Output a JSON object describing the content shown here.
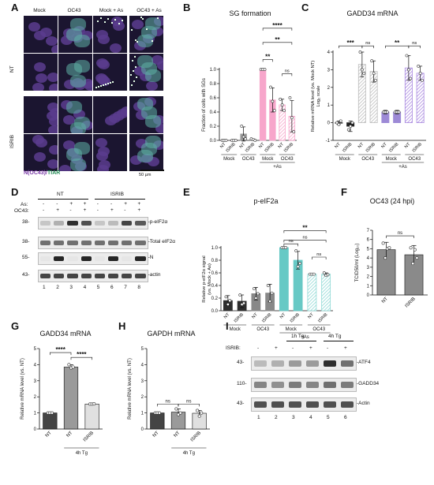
{
  "panels": {
    "A": {
      "letter": "A",
      "col_headers": [
        "Mock",
        "OC43",
        "Mock + As",
        "OC43 + As"
      ],
      "row_labels": [
        "NT",
        "ISRIB"
      ],
      "stain_label_prefix": "N(OC43)",
      "stain_label_sep": "/",
      "stain_label_suffix": "TIAR",
      "scale_bar": "50 µm"
    },
    "B": {
      "letter": "B",
      "title": "SG formation",
      "ylabel": "Fraction of cells with SGs",
      "yticks": [
        "0.0",
        "0.2",
        "0.4",
        "0.6",
        "0.8",
        "1.0"
      ],
      "sig": [
        "****",
        "**",
        "**",
        "ns"
      ],
      "group_labels": [
        "Mock",
        "OC43",
        "Mock",
        "OC43"
      ],
      "super_group": "+As",
      "bar_labels": [
        "NT",
        "ISRIB",
        "NT",
        "ISRIB",
        "NT",
        "ISRIB",
        "NT",
        "ISRIB"
      ]
    },
    "C": {
      "letter": "C",
      "title": "GADD34 mRNA",
      "ylabel_line1": "Relative mRNA level (vs. Mock NT)",
      "ylabel_line2": "Log₂ scale",
      "yticks": [
        "-1",
        "0",
        "1",
        "2",
        "3",
        "4"
      ],
      "sig": [
        "***",
        "ns",
        "**",
        "ns"
      ],
      "group_labels": [
        "Mock",
        "OC43",
        "Mock",
        "OC43"
      ],
      "super_group": "+As",
      "bar_labels": [
        "NT",
        "ISRIB",
        "NT",
        "ISRIB",
        "NT",
        "ISRIB",
        "NT",
        "ISRIB"
      ]
    },
    "D": {
      "letter": "D",
      "treat_labels": [
        "NT",
        "ISRIB"
      ],
      "row_as": "As:",
      "row_oc": "OC43:",
      "as_signs": [
        "-",
        "-",
        "+",
        "+",
        "-",
        "-",
        "+",
        "+"
      ],
      "oc_signs": [
        "-",
        "+",
        "-",
        "+",
        "-",
        "+",
        "-",
        "+"
      ],
      "mw": [
        "38-",
        "38-",
        "55-",
        "43-"
      ],
      "bands": [
        "-p-eIF2α",
        "-Total eIF2α",
        "-N",
        "-actin"
      ],
      "lanes": [
        "1",
        "2",
        "3",
        "4",
        "5",
        "6",
        "7",
        "8"
      ]
    },
    "E": {
      "letter": "E",
      "title": "p-eIF2a",
      "ylabel_line1": "Relative p-eIF2α signal",
      "ylabel_line2": "(vs. Mock + As)",
      "yticks": [
        "0.0",
        "0.2",
        "0.4",
        "0.6",
        "0.8",
        "1.0"
      ],
      "sig": [
        "**",
        "ns",
        "ns",
        "ns"
      ],
      "group_labels": [
        "Mock",
        "OC43",
        "Mock",
        "OC43"
      ],
      "super_group": "+As",
      "bar_labels": [
        "NT",
        "ISRIB",
        "NT",
        "ISRIB",
        "NT",
        "ISRIB",
        "NT",
        "ISRIB"
      ]
    },
    "F": {
      "letter": "F",
      "title": "OC43 (24 hpi)",
      "ylabel": "TCID50/ml (Log₁₀)",
      "yticks": [
        "0",
        "1",
        "2",
        "3",
        "4",
        "5",
        "6",
        "7"
      ],
      "sig": [
        "ns"
      ],
      "bar_labels": [
        "NT",
        "ISRIB"
      ]
    },
    "G": {
      "letter": "G",
      "title": "GADD34 mRNA",
      "ylabel": "Relative mRNA level (vs. NT)",
      "yticks": [
        "0",
        "1",
        "2",
        "3",
        "4",
        "5"
      ],
      "sig": [
        "****",
        "****"
      ],
      "bar_labels": [
        "NT",
        "NT",
        "ISRIB"
      ],
      "group_label": "4h Tg"
    },
    "H": {
      "letter": "H",
      "title": "GAPDH mRNA",
      "ylabel": "Relative mRNA level (vs. NT)",
      "yticks": [
        "0",
        "1",
        "2",
        "3",
        "4",
        "5"
      ],
      "sig": [
        "ns",
        "ns"
      ],
      "bar_labels": [
        "NT",
        "NT",
        "ISRIB"
      ],
      "group_label": "4h Tg"
    },
    "I": {
      "letter": "I",
      "top_labels": [
        "1h Tg",
        "4h Tg"
      ],
      "isrib_label": "ISRIB:",
      "isrib_signs": [
        "-",
        "+",
        "-",
        "+",
        "-",
        "+"
      ],
      "mw": [
        "43-",
        "110-",
        "43-"
      ],
      "bands": [
        "-ATF4",
        "-GADD34",
        "-Actin"
      ],
      "lanes": [
        "1",
        "2",
        "3",
        "4",
        "5",
        "6"
      ]
    }
  },
  "chart_data": [
    {
      "panel": "B",
      "type": "bar",
      "title": "SG formation",
      "ylabel": "Fraction of cells with SGs",
      "ylim": [
        0,
        1.0
      ],
      "categories": [
        "Mock NT",
        "Mock ISRIB",
        "OC43 NT",
        "OC43 ISRIB",
        "Mock+As NT",
        "Mock+As ISRIB",
        "OC43+As NT",
        "OC43+As ISRIB"
      ],
      "values": [
        0.0,
        0.0,
        0.09,
        0.01,
        1.0,
        0.57,
        0.5,
        0.34
      ],
      "errors": [
        0.0,
        0.0,
        0.1,
        0.01,
        0.0,
        0.17,
        0.08,
        0.22
      ],
      "hatched": [
        false,
        false,
        false,
        false,
        false,
        false,
        true,
        true
      ],
      "colors": [
        "#ff4f9e",
        "#ff4f9e",
        "#9a9a9a",
        "#9a9a9a",
        "#f7a6cb",
        "#f7a6cb",
        "#f7a6cb",
        "#f7a6cb"
      ],
      "points": [
        [
          0,
          0,
          0
        ],
        [
          0,
          0,
          0
        ],
        [
          0.2,
          0.05,
          0.02
        ],
        [
          0.02,
          0.01,
          0.0
        ],
        [
          1.0,
          1.0,
          1.0
        ],
        [
          0.75,
          0.55,
          0.42
        ],
        [
          0.58,
          0.5,
          0.42
        ],
        [
          0.6,
          0.32,
          0.12
        ]
      ],
      "grid": false
    },
    {
      "panel": "C",
      "type": "bar",
      "title": "GADD34 mRNA",
      "ylabel": "Relative mRNA level (vs. Mock NT) Log₂ scale",
      "ylim": [
        -1,
        4
      ],
      "categories": [
        "Mock NT",
        "Mock ISRIB",
        "OC43 NT",
        "OC43 ISRIB",
        "Mock+As NT",
        "Mock+As ISRIB",
        "OC43+As NT",
        "OC43+As ISRIB"
      ],
      "values": [
        0.0,
        -0.2,
        3.3,
        2.9,
        0.6,
        0.6,
        3.1,
        2.8
      ],
      "errors": [
        0.1,
        0.3,
        0.7,
        0.6,
        0.1,
        0.1,
        0.7,
        0.4
      ],
      "hatched": [
        false,
        false,
        true,
        true,
        false,
        false,
        true,
        true
      ],
      "colors": [
        "#222222",
        "#222222",
        "#bdbdbd",
        "#bdbdbd",
        "#9d8ad6",
        "#9d8ad6",
        "#a989e0",
        "#a989e0"
      ],
      "points": [
        [
          0,
          -0.1,
          0.1
        ],
        [
          -0.4,
          -0.2,
          0.0
        ],
        [
          4.0,
          3.0,
          2.8
        ],
        [
          3.5,
          2.8,
          2.4
        ],
        [
          0.6,
          0.6,
          0.6
        ],
        [
          0.6,
          0.6,
          0.6
        ],
        [
          3.8,
          3.0,
          2.5
        ],
        [
          3.2,
          2.8,
          2.4
        ]
      ],
      "grid": false
    },
    {
      "panel": "E",
      "type": "bar",
      "title": "p-eIF2a",
      "ylabel": "Relative p-eIF2α signal (vs. Mock + As)",
      "ylim": [
        0,
        1.0
      ],
      "categories": [
        "Mock NT",
        "Mock ISRIB",
        "OC43 NT",
        "OC43 ISRIB",
        "Mock+As NT",
        "Mock+As ISRIB",
        "OC43+As NT",
        "OC43+As ISRIB"
      ],
      "values": [
        0.16,
        0.15,
        0.27,
        0.28,
        1.0,
        0.8,
        0.58,
        0.58
      ],
      "errors": [
        0.08,
        0.1,
        0.1,
        0.14,
        0.0,
        0.14,
        0.0,
        0.02
      ],
      "hatched": [
        false,
        false,
        false,
        false,
        false,
        false,
        true,
        true
      ],
      "colors": [
        "#2d2d2d",
        "#2d2d2d",
        "#888888",
        "#888888",
        "#67c9c5",
        "#67c9c5",
        "#8fd9d5",
        "#8fd9d5"
      ],
      "points": [
        [
          0.22,
          0.1,
          0.16
        ],
        [
          0.25,
          0.1,
          0.12
        ],
        [
          0.35,
          0.2,
          0.27
        ],
        [
          0.4,
          0.15,
          0.28
        ],
        [
          1.0,
          1.0,
          1.0
        ],
        [
          0.95,
          0.7,
          0.75
        ],
        [
          0.58,
          0.58,
          0.58
        ],
        [
          0.6,
          0.56,
          0.57
        ]
      ],
      "grid": false
    },
    {
      "panel": "F",
      "type": "bar",
      "title": "OC43 (24 hpi)",
      "ylabel": "TCID50/ml (Log₁₀)",
      "ylim": [
        0,
        7
      ],
      "categories": [
        "NT",
        "ISRIB"
      ],
      "values": [
        4.9,
        4.35
      ],
      "errors": [
        0.8,
        1.0
      ],
      "colors": [
        "#8a8a8a",
        "#8a8a8a"
      ],
      "points": [
        [
          5.6,
          4.0,
          5.0,
          5.1
        ],
        [
          5.1,
          3.4,
          4.9,
          4.0
        ]
      ],
      "grid": false
    },
    {
      "panel": "G",
      "type": "bar",
      "title": "GADD34 mRNA",
      "ylabel": "Relative mRNA level (vs. NT)",
      "ylim": [
        0,
        5
      ],
      "categories": [
        "NT",
        "NT 4h Tg",
        "ISRIB 4h Tg"
      ],
      "values": [
        1.0,
        3.85,
        1.55
      ],
      "errors": [
        0.0,
        0.15,
        0.02
      ],
      "colors": [
        "#444444",
        "#9a9a9a",
        "#e0e0e0"
      ],
      "points": [
        [
          1.0,
          1.0,
          1.0
        ],
        [
          4.0,
          3.8,
          3.85
        ],
        [
          1.55,
          1.55,
          1.56
        ]
      ],
      "grid": false
    },
    {
      "panel": "H",
      "type": "bar",
      "title": "GAPDH mRNA",
      "ylabel": "Relative mRNA level (vs. NT)",
      "ylim": [
        0,
        5
      ],
      "categories": [
        "NT",
        "NT 4h Tg",
        "ISRIB 4h Tg"
      ],
      "values": [
        1.0,
        1.05,
        0.98
      ],
      "errors": [
        0.0,
        0.2,
        0.18
      ],
      "colors": [
        "#444444",
        "#9a9a9a",
        "#e0e0e0"
      ],
      "points": [
        [
          1.0,
          1.0,
          1.0
        ],
        [
          1.25,
          0.9,
          1.0
        ],
        [
          1.15,
          0.8,
          1.0
        ]
      ],
      "grid": false
    }
  ]
}
